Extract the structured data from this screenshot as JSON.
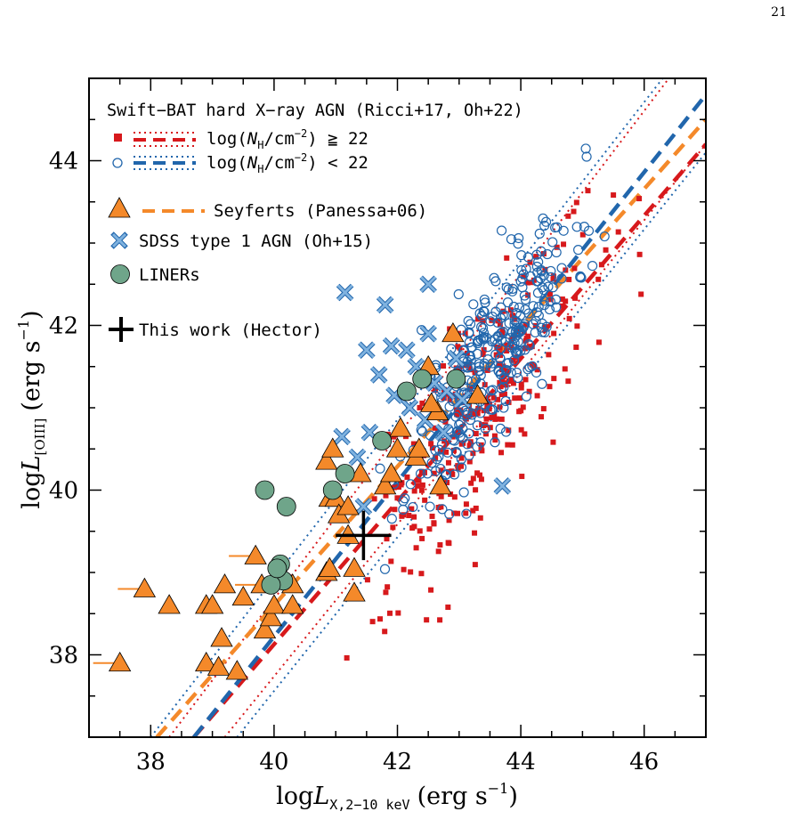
{
  "page_number": "21",
  "colors": {
    "red_points": "#d7191c",
    "blue_points": "#2166ac",
    "seyfert_orange": "#f4892a",
    "sdss_blue": "#7fb2df",
    "liner_green": "#6fa58a",
    "this_work": "#000000"
  },
  "chart_data": {
    "type": "scatter",
    "xlabel": {
      "prefix": "log",
      "L": "L",
      "sub": "X,2−10 keV",
      "units": "(erg s",
      "sup": "−1",
      "close": ")"
    },
    "ylabel": {
      "prefix": "log",
      "L": "L",
      "sub": "[OIII]",
      "units": "(erg s",
      "sup": "−1",
      "close": ")"
    },
    "xlim": [
      37,
      47
    ],
    "ylim": [
      37,
      45
    ],
    "x_ticks": [
      38,
      40,
      42,
      44,
      46
    ],
    "y_ticks": [
      38,
      40,
      42,
      44
    ],
    "grid": false,
    "legend_placement": "top-left",
    "legend": {
      "title": "Swift−BAT hard X−ray AGN (Ricci+17, Oh+22)",
      "nh_high": {
        "prefix": "log(",
        "N": "N",
        "sub": "H",
        "mid": "/cm",
        "sup": "−2",
        "end": ") ≧ 22"
      },
      "nh_low": {
        "prefix": "log(",
        "N": "N",
        "sub": "H",
        "mid": "/cm",
        "sup": "−2",
        "end": ") < 22"
      },
      "seyferts": "Seyferts (Panessa+06)",
      "sdss": "SDSS type 1 AGN (Oh+15)",
      "liners": "LINERs",
      "this_work": "This work (Hector)"
    },
    "relations": [
      {
        "group": "nh_high",
        "style": "dashed",
        "x": [
          38.7,
          47.0
        ],
        "y": [
          37.0,
          44.2
        ]
      },
      {
        "group": "nh_high",
        "style": "dotted",
        "x": [
          39.2,
          47.0
        ],
        "y": [
          37.0,
          44.2
        ]
      },
      {
        "group": "nh_high",
        "style": "dotted",
        "x": [
          38.3,
          46.4
        ],
        "y": [
          37.0,
          45.0
        ]
      },
      {
        "group": "nh_low",
        "style": "dashed",
        "x": [
          38.7,
          47.0
        ],
        "y": [
          37.0,
          44.8
        ]
      },
      {
        "group": "nh_low",
        "style": "dotted",
        "x": [
          39.4,
          47.0
        ],
        "y": [
          37.0,
          44.1
        ]
      },
      {
        "group": "nh_low",
        "style": "dotted",
        "x": [
          38.0,
          46.3
        ],
        "y": [
          37.0,
          45.0
        ]
      },
      {
        "group": "seyferts",
        "style": "dashed",
        "x": [
          38.1,
          47.0
        ],
        "y": [
          37.0,
          44.5
        ]
      }
    ],
    "seyferts": [
      [
        37.5,
        37.9
      ],
      [
        37.9,
        38.8
      ],
      [
        38.3,
        38.6
      ],
      [
        38.9,
        38.6
      ],
      [
        39.0,
        38.6
      ],
      [
        39.2,
        38.85
      ],
      [
        39.5,
        38.7
      ],
      [
        39.7,
        39.2
      ],
      [
        39.8,
        38.85
      ],
      [
        38.9,
        37.9
      ],
      [
        39.15,
        38.2
      ],
      [
        39.1,
        37.85
      ],
      [
        39.4,
        37.8
      ],
      [
        39.85,
        38.3
      ],
      [
        39.95,
        38.45
      ],
      [
        40.0,
        38.6
      ],
      [
        40.3,
        38.85
      ],
      [
        40.3,
        38.6
      ],
      [
        40.85,
        39.0
      ],
      [
        40.9,
        39.05
      ],
      [
        41.3,
        39.05
      ],
      [
        41.3,
        38.75
      ],
      [
        41.2,
        39.45
      ],
      [
        40.9,
        39.9
      ],
      [
        41.0,
        39.9
      ],
      [
        41.05,
        39.7
      ],
      [
        41.2,
        39.8
      ],
      [
        40.85,
        40.35
      ],
      [
        40.95,
        40.5
      ],
      [
        41.4,
        40.2
      ],
      [
        41.8,
        40.05
      ],
      [
        41.9,
        40.2
      ],
      [
        42.0,
        40.5
      ],
      [
        42.05,
        40.75
      ],
      [
        42.3,
        40.4
      ],
      [
        42.35,
        40.5
      ],
      [
        42.5,
        41.5
      ],
      [
        42.65,
        40.95
      ],
      [
        42.55,
        41.05
      ],
      [
        42.7,
        40.05
      ],
      [
        42.9,
        41.9
      ],
      [
        43.3,
        41.15
      ]
    ],
    "seyfert_upper_limits": [
      [
        37.5,
        37.9
      ],
      [
        37.9,
        38.8
      ],
      [
        39.7,
        39.2
      ],
      [
        39.8,
        38.85
      ]
    ],
    "sdss_type1": [
      [
        41.15,
        42.4
      ],
      [
        41.8,
        42.25
      ],
      [
        42.5,
        42.5
      ],
      [
        41.5,
        41.7
      ],
      [
        41.9,
        41.75
      ],
      [
        42.15,
        41.7
      ],
      [
        42.5,
        41.9
      ],
      [
        41.7,
        41.4
      ],
      [
        42.3,
        41.5
      ],
      [
        41.95,
        41.15
      ],
      [
        42.2,
        41.0
      ],
      [
        41.1,
        40.65
      ],
      [
        41.55,
        40.7
      ],
      [
        41.35,
        40.4
      ],
      [
        41.45,
        39.8
      ],
      [
        43.7,
        40.05
      ],
      [
        42.6,
        41.3
      ],
      [
        42.8,
        41.2
      ],
      [
        42.45,
        40.85
      ],
      [
        42.75,
        40.7
      ],
      [
        43.05,
        41.1
      ],
      [
        42.95,
        41.6
      ]
    ],
    "liners": [
      [
        39.85,
        40.0
      ],
      [
        40.2,
        39.8
      ],
      [
        40.95,
        40.0
      ],
      [
        41.15,
        40.2
      ],
      [
        41.75,
        40.6
      ],
      [
        42.15,
        41.2
      ],
      [
        42.4,
        41.35
      ],
      [
        42.95,
        41.35
      ],
      [
        40.1,
        39.1
      ],
      [
        40.15,
        38.9
      ],
      [
        39.95,
        38.85
      ],
      [
        40.05,
        39.05
      ]
    ],
    "this_work": {
      "x": 41.45,
      "y": 39.45,
      "xerr": 0.45,
      "yerr": 0.3
    },
    "bat_nh_high_seed": 7,
    "bat_nh_low_seed": 11
  }
}
